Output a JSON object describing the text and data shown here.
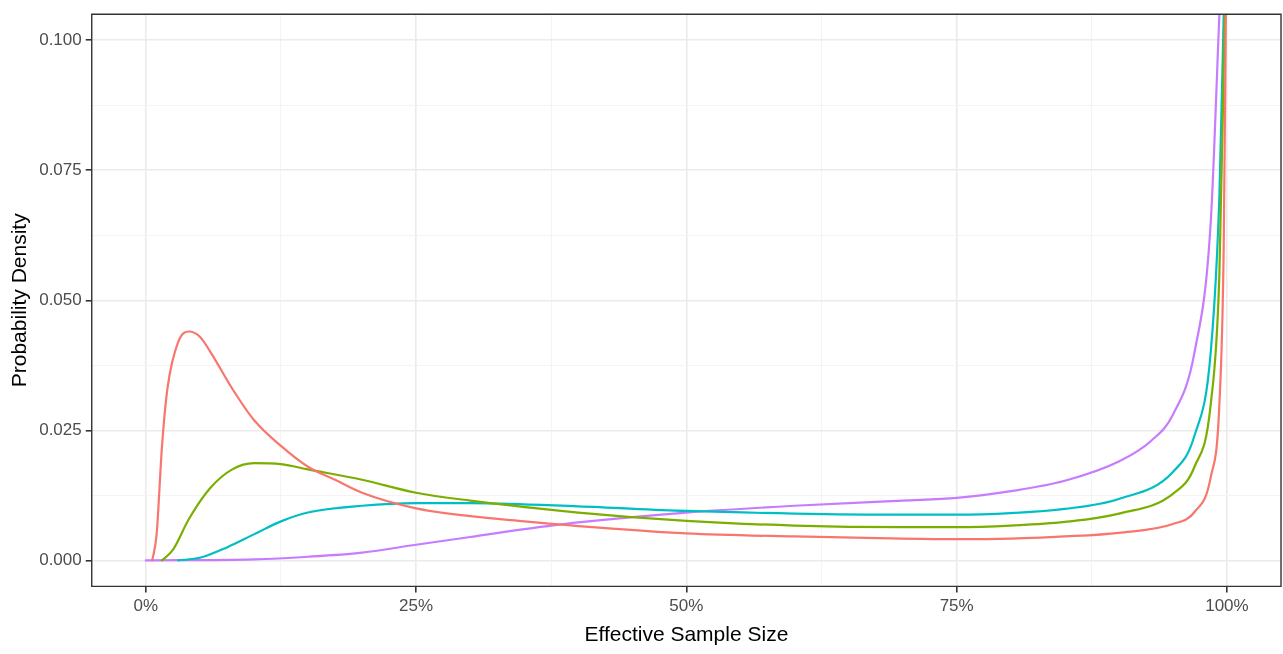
{
  "chart_data": {
    "type": "line",
    "xlabel": "Effective Sample Size",
    "ylabel": "Probability Density",
    "series": [
      {
        "color": "#f8766d",
        "x": [
          0.6,
          1,
          1.5,
          2,
          3,
          4,
          5,
          6,
          8,
          10,
          12.5,
          15,
          17.5,
          20,
          25,
          30,
          35,
          40,
          50,
          60,
          70,
          75,
          80,
          85,
          90,
          95,
          97,
          98.5,
          99.3,
          99.7,
          99.9
        ],
        "values": [
          0,
          0.005,
          0.022,
          0.033,
          0.042,
          0.044,
          0.043,
          0.04,
          0.033,
          0.027,
          0.022,
          0.018,
          0.0155,
          0.013,
          0.01,
          0.0085,
          0.0075,
          0.0066,
          0.0052,
          0.0046,
          0.0042,
          0.0041,
          0.0042,
          0.0046,
          0.0053,
          0.007,
          0.0093,
          0.016,
          0.03,
          0.06,
          0.105
        ]
      },
      {
        "color": "#7cae00",
        "x": [
          1.5,
          2.5,
          4,
          6,
          8,
          10,
          12.5,
          15,
          20,
          25,
          30,
          40,
          50,
          60,
          70,
          75,
          80,
          85,
          90,
          95,
          97,
          98.5,
          99.3,
          99.8
        ],
        "values": [
          0,
          0.002,
          0.008,
          0.014,
          0.0175,
          0.0187,
          0.0185,
          0.0175,
          0.0155,
          0.013,
          0.0115,
          0.0092,
          0.0076,
          0.0067,
          0.0064,
          0.0064,
          0.0067,
          0.0074,
          0.009,
          0.0128,
          0.018,
          0.03,
          0.055,
          0.105
        ]
      },
      {
        "color": "#00bfc4",
        "x": [
          3,
          5,
          7.5,
          10,
          12.5,
          15,
          20,
          25,
          30,
          40,
          50,
          60,
          70,
          75,
          80,
          85,
          90,
          95,
          97,
          98.5,
          99.3,
          99.7
        ],
        "values": [
          0,
          0.0005,
          0.0025,
          0.005,
          0.0075,
          0.0092,
          0.0105,
          0.011,
          0.011,
          0.0104,
          0.0095,
          0.009,
          0.0088,
          0.0088,
          0.0091,
          0.0099,
          0.0118,
          0.017,
          0.024,
          0.04,
          0.07,
          0.105
        ]
      },
      {
        "color": "#c77cff",
        "x": [
          0,
          10,
          15,
          20,
          25,
          30,
          35,
          40,
          50,
          60,
          70,
          75,
          80,
          85,
          90,
          93,
          95,
          97,
          98.5,
          99.3
        ],
        "values": [
          0,
          0.0002,
          0.0007,
          0.0015,
          0.003,
          0.0045,
          0.006,
          0.0073,
          0.0092,
          0.0105,
          0.0115,
          0.012,
          0.0133,
          0.0153,
          0.019,
          0.023,
          0.028,
          0.04,
          0.065,
          0.105
        ]
      }
    ],
    "xlim": [
      -5,
      105
    ],
    "ylim": [
      -0.005,
      0.105
    ],
    "xticks": [
      {
        "value": 0,
        "label": "0%"
      },
      {
        "value": 12.5,
        "label": null
      },
      {
        "value": 25,
        "label": "25%"
      },
      {
        "value": 37.5,
        "label": null
      },
      {
        "value": 50,
        "label": "50%"
      },
      {
        "value": 62.5,
        "label": null
      },
      {
        "value": 75,
        "label": "75%"
      },
      {
        "value": 87.5,
        "label": null
      },
      {
        "value": 100,
        "label": "100%"
      }
    ],
    "yticks": [
      {
        "value": 0,
        "label": "0.000"
      },
      {
        "value": 0.0125,
        "label": null
      },
      {
        "value": 0.025,
        "label": "0.025"
      },
      {
        "value": 0.0375,
        "label": null
      },
      {
        "value": 0.05,
        "label": "0.050"
      },
      {
        "value": 0.0625,
        "label": null
      },
      {
        "value": 0.075,
        "label": "0.075"
      },
      {
        "value": 0.0875,
        "label": null
      },
      {
        "value": 0.1,
        "label": "0.100"
      }
    ],
    "grid": true,
    "legend": false,
    "marker": "none",
    "line_style": "solid"
  }
}
